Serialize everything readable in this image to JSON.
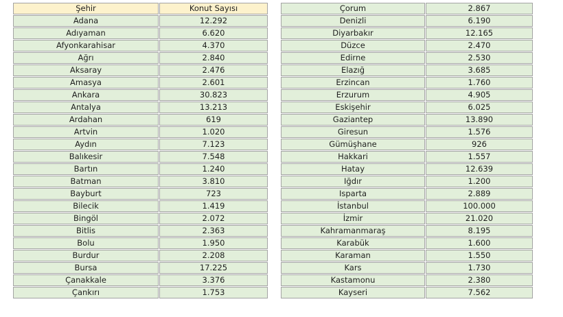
{
  "colors": {
    "header_bg": "#fdf2cc",
    "row_bg": "#e2efda",
    "border": "#a3a3a3",
    "text": "#1f1f1f"
  },
  "left_table": {
    "headers": [
      "Şehir",
      "Konut Sayısı"
    ],
    "rows": [
      [
        "Adana",
        "12.292"
      ],
      [
        "Adıyaman",
        "6.620"
      ],
      [
        "Afyonkarahisar",
        "4.370"
      ],
      [
        "Ağrı",
        "2.840"
      ],
      [
        "Aksaray",
        "2.476"
      ],
      [
        "Amasya",
        "2.601"
      ],
      [
        "Ankara",
        "30.823"
      ],
      [
        "Antalya",
        "13.213"
      ],
      [
        "Ardahan",
        "619"
      ],
      [
        "Artvin",
        "1.020"
      ],
      [
        "Aydın",
        "7.123"
      ],
      [
        "Balıkesir",
        "7.548"
      ],
      [
        "Bartın",
        "1.240"
      ],
      [
        "Batman",
        "3.810"
      ],
      [
        "Bayburt",
        "723"
      ],
      [
        "Bilecik",
        "1.419"
      ],
      [
        "Bingöl",
        "2.072"
      ],
      [
        "Bitlis",
        "2.363"
      ],
      [
        "Bolu",
        "1.950"
      ],
      [
        "Burdur",
        "2.208"
      ],
      [
        "Bursa",
        "17.225"
      ],
      [
        "Çanakkale",
        "3.376"
      ],
      [
        "Çankırı",
        "1.753"
      ]
    ]
  },
  "right_table": {
    "rows": [
      [
        "Çorum",
        "2.867"
      ],
      [
        "Denizli",
        "6.190"
      ],
      [
        "Diyarbakır",
        "12.165"
      ],
      [
        "Düzce",
        "2.470"
      ],
      [
        "Edirne",
        "2.530"
      ],
      [
        "Elazığ",
        "3.685"
      ],
      [
        "Erzincan",
        "1.760"
      ],
      [
        "Erzurum",
        "4.905"
      ],
      [
        "Eskişehir",
        "6.025"
      ],
      [
        "Gaziantep",
        "13.890"
      ],
      [
        "Giresun",
        "1.576"
      ],
      [
        "Gümüşhane",
        "926"
      ],
      [
        "Hakkari",
        "1.557"
      ],
      [
        "Hatay",
        "12.639"
      ],
      [
        "Iğdır",
        "1.200"
      ],
      [
        "Isparta",
        "2.889"
      ],
      [
        "İstanbul",
        "100.000"
      ],
      [
        "İzmir",
        "21.020"
      ],
      [
        "Kahramanmaraş",
        "8.195"
      ],
      [
        "Karabük",
        "1.600"
      ],
      [
        "Karaman",
        "1.550"
      ],
      [
        "Kars",
        "1.730"
      ],
      [
        "Kastamonu",
        "2.380"
      ],
      [
        "Kayseri",
        "7.562"
      ]
    ]
  },
  "chart_data": {
    "type": "table",
    "title": "",
    "columns": [
      "Şehir",
      "Konut Sayısı"
    ],
    "rows": [
      [
        "Adana",
        12292
      ],
      [
        "Adıyaman",
        6620
      ],
      [
        "Afyonkarahisar",
        4370
      ],
      [
        "Ağrı",
        2840
      ],
      [
        "Aksaray",
        2476
      ],
      [
        "Amasya",
        2601
      ],
      [
        "Ankara",
        30823
      ],
      [
        "Antalya",
        13213
      ],
      [
        "Ardahan",
        619
      ],
      [
        "Artvin",
        1020
      ],
      [
        "Aydın",
        7123
      ],
      [
        "Balıkesir",
        7548
      ],
      [
        "Bartın",
        1240
      ],
      [
        "Batman",
        3810
      ],
      [
        "Bayburt",
        723
      ],
      [
        "Bilecik",
        1419
      ],
      [
        "Bingöl",
        2072
      ],
      [
        "Bitlis",
        2363
      ],
      [
        "Bolu",
        1950
      ],
      [
        "Burdur",
        2208
      ],
      [
        "Bursa",
        17225
      ],
      [
        "Çanakkale",
        3376
      ],
      [
        "Çankırı",
        1753
      ],
      [
        "Çorum",
        2867
      ],
      [
        "Denizli",
        6190
      ],
      [
        "Diyarbakır",
        12165
      ],
      [
        "Düzce",
        2470
      ],
      [
        "Edirne",
        2530
      ],
      [
        "Elazığ",
        3685
      ],
      [
        "Erzincan",
        1760
      ],
      [
        "Erzurum",
        4905
      ],
      [
        "Eskişehir",
        6025
      ],
      [
        "Gaziantep",
        13890
      ],
      [
        "Giresun",
        1576
      ],
      [
        "Gümüşhane",
        926
      ],
      [
        "Hakkari",
        1557
      ],
      [
        "Hatay",
        12639
      ],
      [
        "Iğdır",
        1200
      ],
      [
        "Isparta",
        2889
      ],
      [
        "İstanbul",
        100000
      ],
      [
        "İzmir",
        21020
      ],
      [
        "Kahramanmaraş",
        8195
      ],
      [
        "Karabük",
        1600
      ],
      [
        "Karaman",
        1550
      ],
      [
        "Kars",
        1730
      ],
      [
        "Kastamonu",
        2380
      ],
      [
        "Kayseri",
        7562
      ]
    ],
    "number_format": "thousands separated by dot (Turkish locale)",
    "layout": "two side-by-side tables; header row only on left table"
  }
}
